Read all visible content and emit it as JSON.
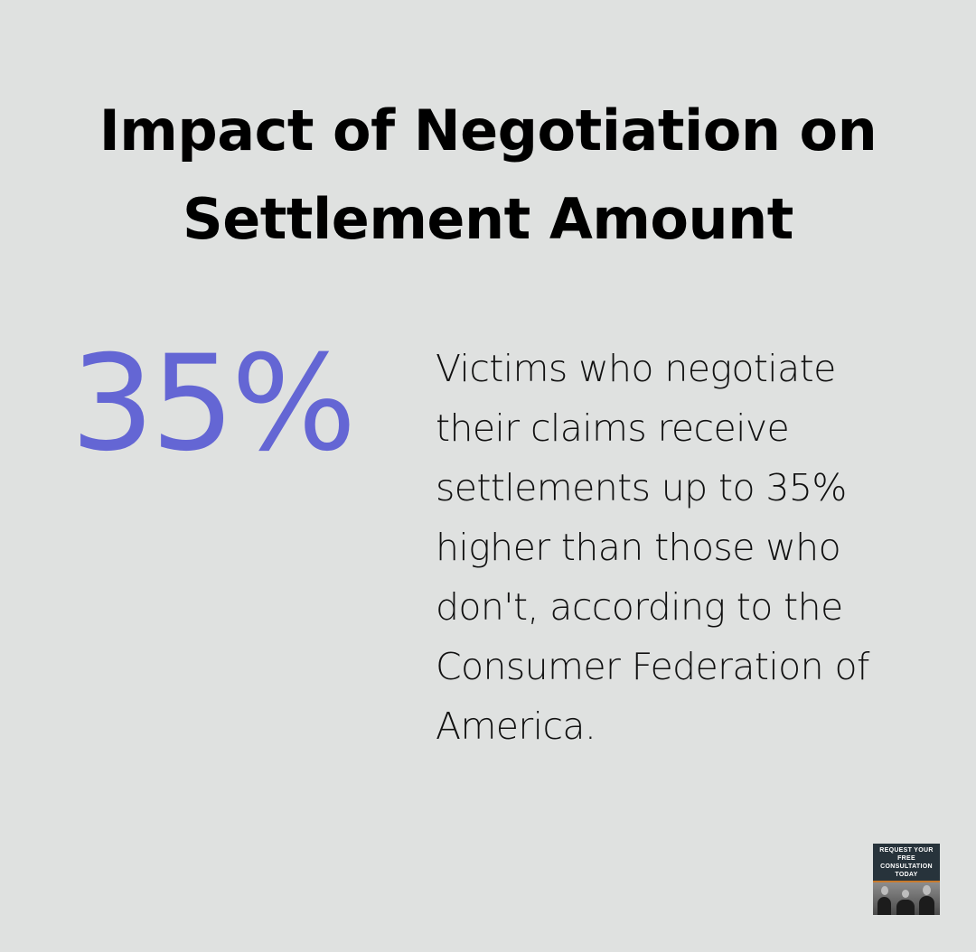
{
  "title": "Impact of Negotiation on Settlement Amount",
  "stat": {
    "value": "35%",
    "color": "#6466d4"
  },
  "description": "Victims who negotiate their claims receive settlements up to 35% higher than those who don't, according to the Consumer Federation of America.",
  "badge": {
    "text": "REQUEST YOUR FREE CONSULTATION TODAY"
  },
  "colors": {
    "background": "#dfe1e0",
    "badge": "#27333b",
    "accent_line": "#c87a2c"
  }
}
